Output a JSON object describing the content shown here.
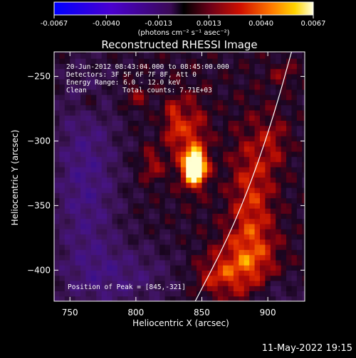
{
  "colorbar": {
    "ticks": [
      "-0.0067",
      "-0.0040",
      "-0.0013",
      "0.0013",
      "0.0040",
      "0.0067"
    ],
    "unit_label": "(photons cm⁻² s⁻¹ asec⁻²)",
    "min": -0.0067,
    "max": 0.0067
  },
  "chart_data": {
    "type": "heatmap",
    "title": "Reconstructed RHESSI Image",
    "xlabel": "Heliocentric X (arcsec)",
    "ylabel": "Heliocentric Y (arcsec)",
    "xlim": [
      738,
      928
    ],
    "ylim": [
      -424,
      -231
    ],
    "xticks": [
      750,
      800,
      850,
      900
    ],
    "yticks": [
      -250,
      -300,
      -350,
      -400
    ],
    "peak": [
      845,
      -321
    ],
    "limb_curve": [
      [
        845,
        -424
      ],
      [
        870,
        -375
      ],
      [
        890,
        -325
      ],
      [
        906,
        -275
      ],
      [
        918,
        -231
      ]
    ],
    "annotations": {
      "time_range": "20-Jun-2012 08:43:04.000 to 08:45:00.000",
      "detectors": "Detectors: 3F 5F 6F 7F 8F, Att 0",
      "energy": "Energy Range: 6.0 - 12.0 keV",
      "clean": "Clean",
      "total_counts": "Total counts: 7.71E+03",
      "peak_label": "Position of Peak = [845,-321]"
    }
  },
  "footer": {
    "timestamp": "11-May-2022 19:15"
  }
}
